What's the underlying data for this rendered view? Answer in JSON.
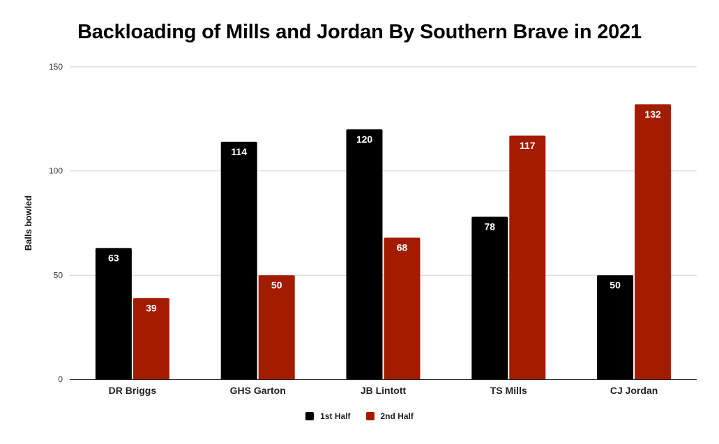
{
  "chart_data": {
    "type": "bar",
    "title": "Backloading of Mills and Jordan By Southern Brave in 2021",
    "xlabel": "",
    "ylabel": "Balls bowled",
    "categories": [
      "DR Briggs",
      "GHS Garton",
      "JB Lintott",
      "TS Mills",
      "CJ Jordan"
    ],
    "series": [
      {
        "name": "1st Half",
        "color": "#000000",
        "values": [
          63,
          114,
          120,
          78,
          50
        ]
      },
      {
        "name": "2nd Half",
        "color": "#a31c00",
        "values": [
          39,
          50,
          68,
          117,
          132
        ]
      }
    ],
    "ylim": [
      0,
      150
    ],
    "yticks": [
      0,
      50,
      100,
      150
    ],
    "grid": true,
    "legend_position": "bottom",
    "data_labels": true
  }
}
